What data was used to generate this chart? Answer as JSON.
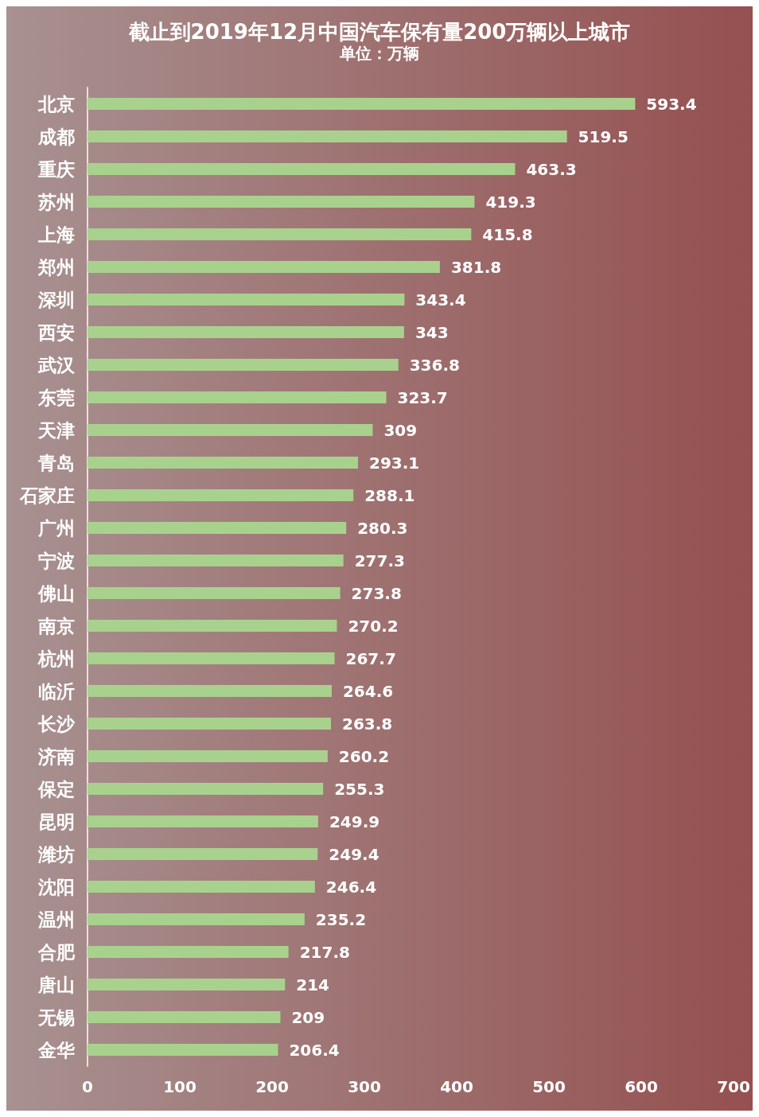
{
  "chart_data": {
    "type": "bar",
    "orientation": "horizontal",
    "title": "截止到2019年12月中国汽车保有量200万辆以上城市",
    "subtitle": "单位：万辆",
    "categories": [
      "北京",
      "成都",
      "重庆",
      "苏州",
      "上海",
      "郑州",
      "深圳",
      "西安",
      "武汉",
      "东莞",
      "天津",
      "青岛",
      "石家庄",
      "广州",
      "宁波",
      "佛山",
      "南京",
      "杭州",
      "临沂",
      "长沙",
      "济南",
      "保定",
      "昆明",
      "潍坊",
      "沈阳",
      "温州",
      "合肥",
      "唐山",
      "无锡",
      "金华"
    ],
    "values": [
      593.4,
      519.5,
      463.3,
      419.3,
      415.8,
      381.8,
      343.4,
      343,
      336.8,
      323.7,
      309,
      293.1,
      288.1,
      280.3,
      277.3,
      273.8,
      270.2,
      267.7,
      264.6,
      263.8,
      260.2,
      255.3,
      249.9,
      249.4,
      246.4,
      235.2,
      217.8,
      214,
      209,
      206.4
    ],
    "color": "#a9d18e",
    "xlim": [
      0,
      700
    ],
    "xticks": [
      0,
      100,
      200,
      300,
      400,
      500,
      600,
      700
    ],
    "data_labels": true
  }
}
